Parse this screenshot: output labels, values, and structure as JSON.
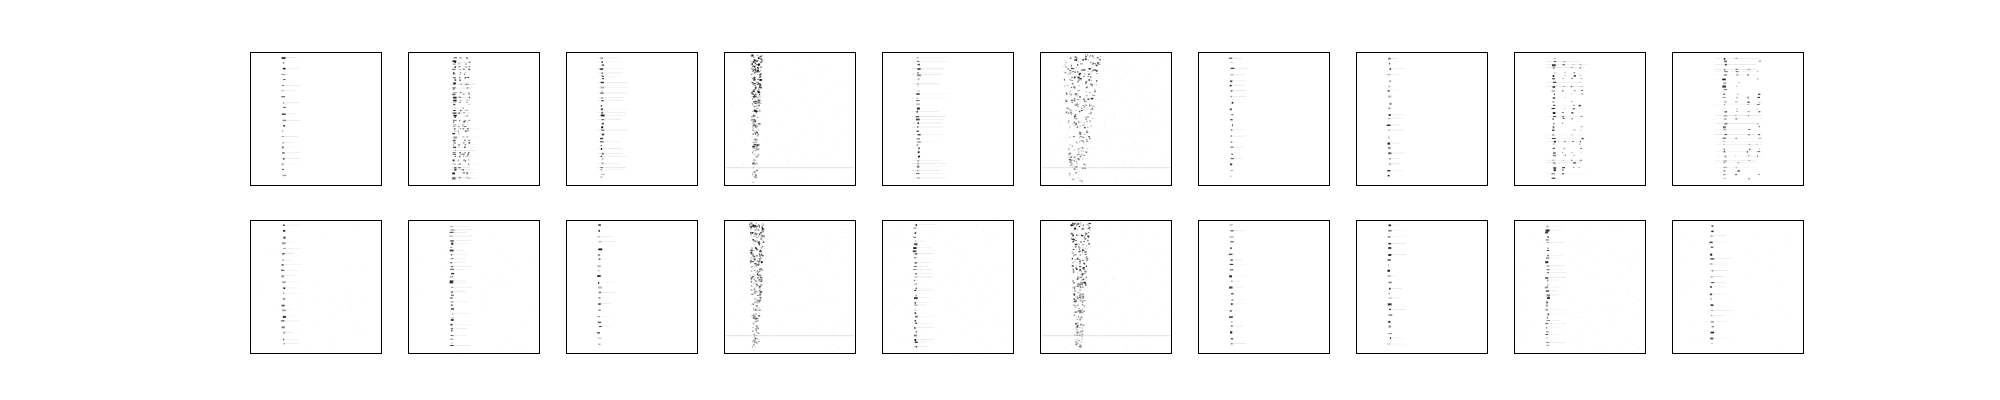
{
  "figure": {
    "background": "#ffffff",
    "frame_color": "#000000",
    "mark_color": "#000000",
    "rows": 2,
    "columns": 10,
    "panel_ticks": "none"
  },
  "panels": [
    {
      "row": 0,
      "col": 0,
      "pattern": "dotted-column",
      "column_pos": 0.25,
      "spread": 0.04,
      "density": "sparse",
      "background_noise": "none"
    },
    {
      "row": 0,
      "col": 1,
      "pattern": "clustered-columns",
      "column_pos": 0.35,
      "spread": 0.1,
      "density": "dense",
      "background_noise": "none"
    },
    {
      "row": 0,
      "col": 2,
      "pattern": "dotted-column",
      "column_pos": 0.27,
      "spread": 0.12,
      "density": "medium",
      "background_noise": "none"
    },
    {
      "row": 0,
      "col": 3,
      "pattern": "smeared-column",
      "column_pos": 0.22,
      "spread": 0.03,
      "density": "dense",
      "background_noise": "light"
    },
    {
      "row": 0,
      "col": 4,
      "pattern": "dotted-column",
      "column_pos": 0.27,
      "spread": 0.16,
      "density": "medium",
      "background_noise": "none"
    },
    {
      "row": 0,
      "col": 5,
      "pattern": "smeared-column",
      "column_pos": 0.25,
      "spread": 0.1,
      "density": "dense",
      "background_noise": "medium"
    },
    {
      "row": 0,
      "col": 6,
      "pattern": "dotted-column",
      "column_pos": 0.25,
      "spread": 0.02,
      "density": "sparse",
      "background_noise": "none"
    },
    {
      "row": 0,
      "col": 7,
      "pattern": "dotted-column",
      "column_pos": 0.25,
      "spread": 0.02,
      "density": "sparse",
      "background_noise": "none"
    },
    {
      "row": 0,
      "col": 8,
      "pattern": "clustered-columns",
      "column_pos": 0.3,
      "spread": 0.2,
      "density": "medium",
      "background_noise": "none"
    },
    {
      "row": 0,
      "col": 9,
      "pattern": "clustered-columns",
      "column_pos": 0.4,
      "spread": 0.25,
      "density": "medium",
      "background_noise": "none"
    },
    {
      "row": 1,
      "col": 0,
      "pattern": "dotted-column",
      "column_pos": 0.25,
      "spread": 0.03,
      "density": "sparse",
      "background_noise": "faint"
    },
    {
      "row": 1,
      "col": 1,
      "pattern": "dotted-column",
      "column_pos": 0.33,
      "spread": 0.06,
      "density": "medium",
      "background_noise": "faint"
    },
    {
      "row": 1,
      "col": 2,
      "pattern": "dotted-column",
      "column_pos": 0.25,
      "spread": 0.02,
      "density": "sparse",
      "background_noise": "none"
    },
    {
      "row": 1,
      "col": 3,
      "pattern": "smeared-column",
      "column_pos": 0.22,
      "spread": 0.04,
      "density": "dense",
      "background_noise": "light"
    },
    {
      "row": 1,
      "col": 4,
      "pattern": "dotted-column",
      "column_pos": 0.25,
      "spread": 0.05,
      "density": "medium",
      "background_noise": "light"
    },
    {
      "row": 1,
      "col": 5,
      "pattern": "smeared-column",
      "column_pos": 0.27,
      "spread": 0.05,
      "density": "dense",
      "background_noise": "light"
    },
    {
      "row": 1,
      "col": 6,
      "pattern": "dotted-column",
      "column_pos": 0.25,
      "spread": 0.02,
      "density": "sparse",
      "background_noise": "none"
    },
    {
      "row": 1,
      "col": 7,
      "pattern": "dotted-column",
      "column_pos": 0.25,
      "spread": 0.02,
      "density": "sparse",
      "background_noise": "none"
    },
    {
      "row": 1,
      "col": 8,
      "pattern": "dotted-column",
      "column_pos": 0.25,
      "spread": 0.04,
      "density": "medium",
      "background_noise": "light"
    },
    {
      "row": 1,
      "col": 9,
      "pattern": "dotted-column",
      "column_pos": 0.3,
      "spread": 0.06,
      "density": "sparse",
      "background_noise": "faint"
    }
  ]
}
